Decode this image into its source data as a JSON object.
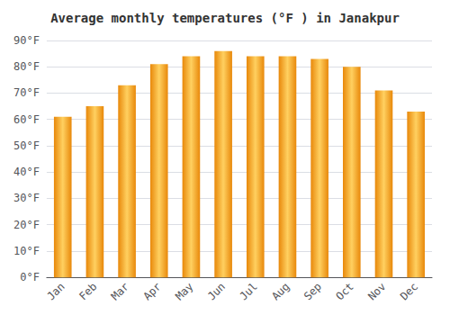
{
  "chart_data": {
    "type": "bar",
    "title": "Average monthly temperatures (°F ) in Janakpur",
    "categories": [
      "Jan",
      "Feb",
      "Mar",
      "Apr",
      "May",
      "Jun",
      "Jul",
      "Aug",
      "Sep",
      "Oct",
      "Nov",
      "Dec"
    ],
    "values": [
      61,
      65,
      73,
      81,
      84,
      86,
      84,
      84,
      83,
      80,
      71,
      63
    ],
    "color": "#E8880A",
    "ylim": [
      0,
      90
    ],
    "yticks": [
      {
        "value": 0,
        "label": "0°F"
      },
      {
        "value": 10,
        "label": "10°F"
      },
      {
        "value": 20,
        "label": "20°F"
      },
      {
        "value": 30,
        "label": "30°F"
      },
      {
        "value": 40,
        "label": "40°F"
      },
      {
        "value": 50,
        "label": "50°F"
      },
      {
        "value": 60,
        "label": "60°F"
      },
      {
        "value": 70,
        "label": "70°F"
      },
      {
        "value": 80,
        "label": "80°F"
      },
      {
        "value": 90,
        "label": "90°F"
      }
    ],
    "grid": true
  }
}
